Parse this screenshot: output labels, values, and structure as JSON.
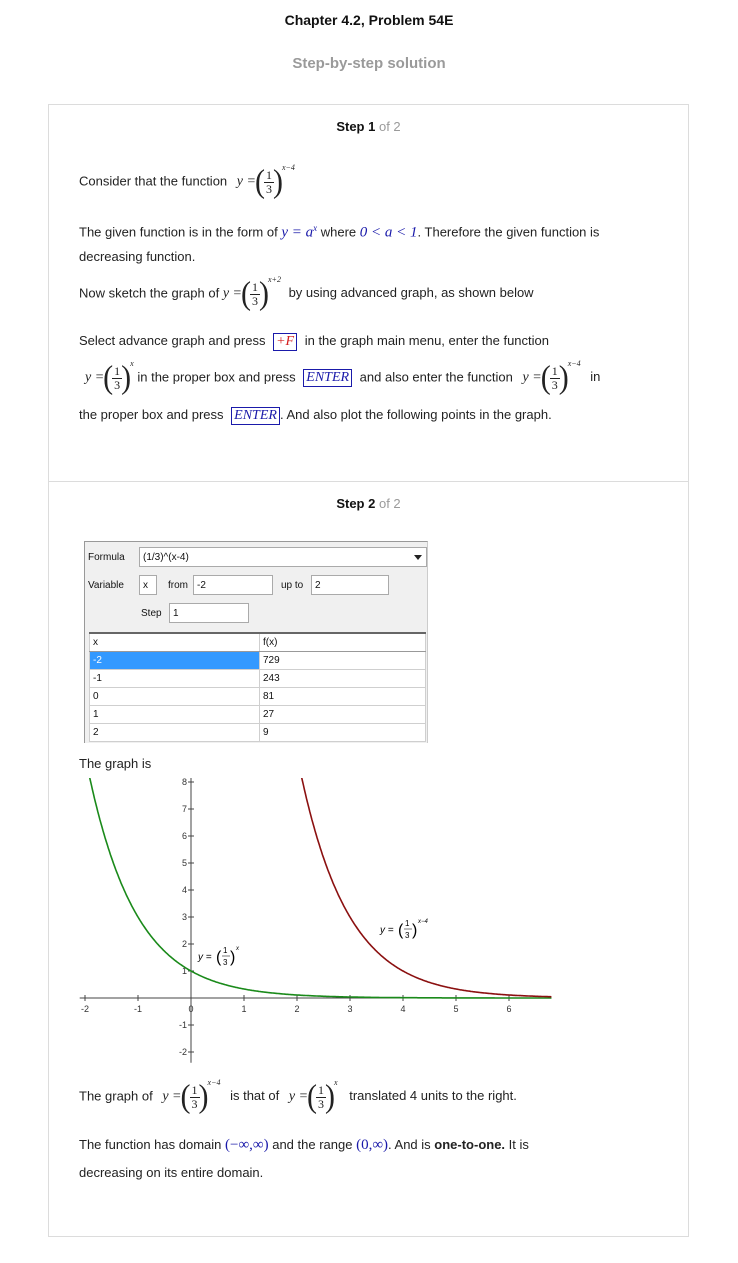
{
  "header": {
    "title": "Chapter 4.2, Problem 54E",
    "subtitle": "Step-by-step solution"
  },
  "step1": {
    "label": "Step 1",
    "of": "of 2",
    "consider": "Consider that the function",
    "given_pre": "The given function is in the form of",
    "given_form": "y = a",
    "given_form_exp": "x",
    "where": "where",
    "condition": "0 < a < 1",
    "given_post": ". Therefore the given function is",
    "decreasing": "decreasing function.",
    "sketch_pre": "Now sketch the graph of",
    "sketch_post": "by using advanced graph, as shown below",
    "select_pre": "Select advance graph and press",
    "plus_f": "+F",
    "select_post": "in the graph main menu, enter the function",
    "proper_box": "in the proper box and press",
    "enter_key": "ENTER",
    "also_enter": "and also enter the function",
    "in": "in",
    "the_proper": "the proper box and press",
    "also_plot": ". And also plot the following points in the graph.",
    "exp_x_minus_4": "x−4",
    "exp_x_plus_2": "x+2",
    "exp_x": "x",
    "y_eq": "y =",
    "one": "1",
    "three": "3"
  },
  "step2": {
    "label": "Step 2",
    "of": "of 2",
    "panel": {
      "formula_label": "Formula",
      "formula_value": "(1/3)^(x-4)",
      "variable_label": "Variable",
      "variable_value": "x",
      "from_label": "from",
      "from_value": "-2",
      "upto_label": "up to",
      "upto_value": "2",
      "step_label": "Step",
      "step_value": "1",
      "col_x": "x",
      "col_fx": "f(x)",
      "rows": [
        {
          "x": "-2",
          "fx": "729"
        },
        {
          "x": "-1",
          "fx": "243"
        },
        {
          "x": "0",
          "fx": "81"
        },
        {
          "x": "1",
          "fx": "27"
        },
        {
          "x": "2",
          "fx": "9"
        }
      ]
    },
    "graph_is": "The graph is",
    "graph_of": "The graph of",
    "is_that_of": "is that of",
    "translated": "translated 4 units to the right.",
    "domain_pre": "The function has domain",
    "domain": "(−∞,∞)",
    "range_pre": "and the range",
    "range": "(0,∞)",
    "and_is": ". And is",
    "one_to_one": "one-to-one.",
    "it_is": "It is",
    "decreasing_domain": "decreasing on its entire domain."
  },
  "chart_data": {
    "type": "line",
    "x_ticks": [
      -2,
      -1,
      0,
      1,
      2,
      3,
      4,
      5,
      6
    ],
    "y_ticks": [
      -2,
      -1,
      1,
      2,
      3,
      4,
      5,
      6,
      7,
      8
    ],
    "xlim": [
      -2.1,
      6.8
    ],
    "ylim": [
      -2.4,
      8.2
    ],
    "series": [
      {
        "name": "y=(1/3)^x",
        "color": "#1a8a1a",
        "function": "(1/3)^x"
      },
      {
        "name": "y=(1/3)^(x-4)",
        "color": "#8b1010",
        "function": "(1/3)^(x-4)"
      }
    ]
  }
}
